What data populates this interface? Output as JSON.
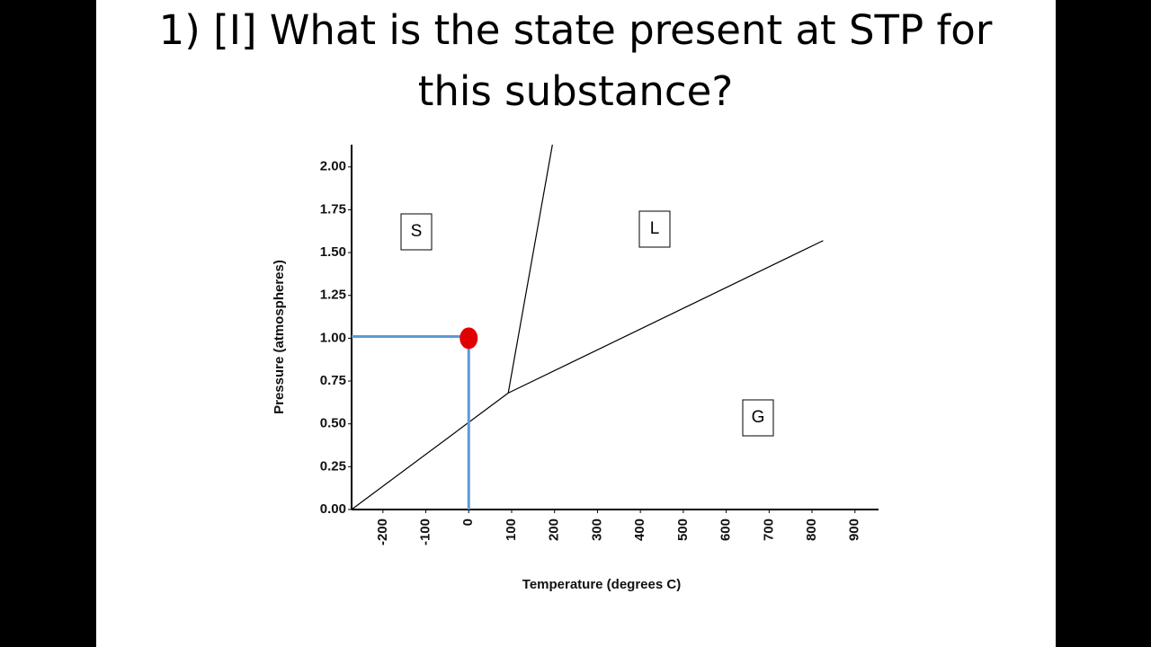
{
  "chart_data": {
    "type": "line",
    "title": "1) [I] What is the state present at STP for this substance?",
    "x_label": "Temperature (degrees C)",
    "y_label": "Pressure (atmospheres)",
    "xlim": [
      -273,
      955
    ],
    "ylim": [
      0,
      2.13
    ],
    "xticks": [
      -200,
      -100,
      0,
      100,
      200,
      300,
      400,
      500,
      600,
      700,
      800,
      900
    ],
    "yticks": [
      {
        "value": 0,
        "label": "0.00"
      },
      {
        "value": 0.25,
        "label": "0.25"
      },
      {
        "value": 0.5,
        "label": "0.50"
      },
      {
        "value": 0.75,
        "label": "0.75"
      },
      {
        "value": 1,
        "label": "1.00"
      },
      {
        "value": 1.25,
        "label": "1.25"
      },
      {
        "value": 1.5,
        "label": "1.50"
      },
      {
        "value": 1.75,
        "label": "1.75"
      },
      {
        "value": 2,
        "label": "2.00"
      }
    ],
    "series": [
      {
        "color": "#000000",
        "x": [
          -273,
          92
        ],
        "values": [
          0,
          0.68
        ]
      },
      {
        "color": "#000000",
        "x": [
          92,
          195
        ],
        "values": [
          0.68,
          2.13
        ]
      },
      {
        "color": "#000000",
        "x": [
          92,
          826
        ],
        "values": [
          0.68,
          1.57
        ]
      },
      {
        "color": "#5b9bd5",
        "x": [
          -273,
          0,
          0
        ],
        "values": [
          1.01,
          1.01,
          0
        ]
      },
      {
        "color": "#e00000",
        "x": [
          0
        ],
        "values": [
          1.0
        ],
        "style": "point"
      }
    ],
    "annotations": [
      "S",
      "L",
      "G"
    ]
  }
}
